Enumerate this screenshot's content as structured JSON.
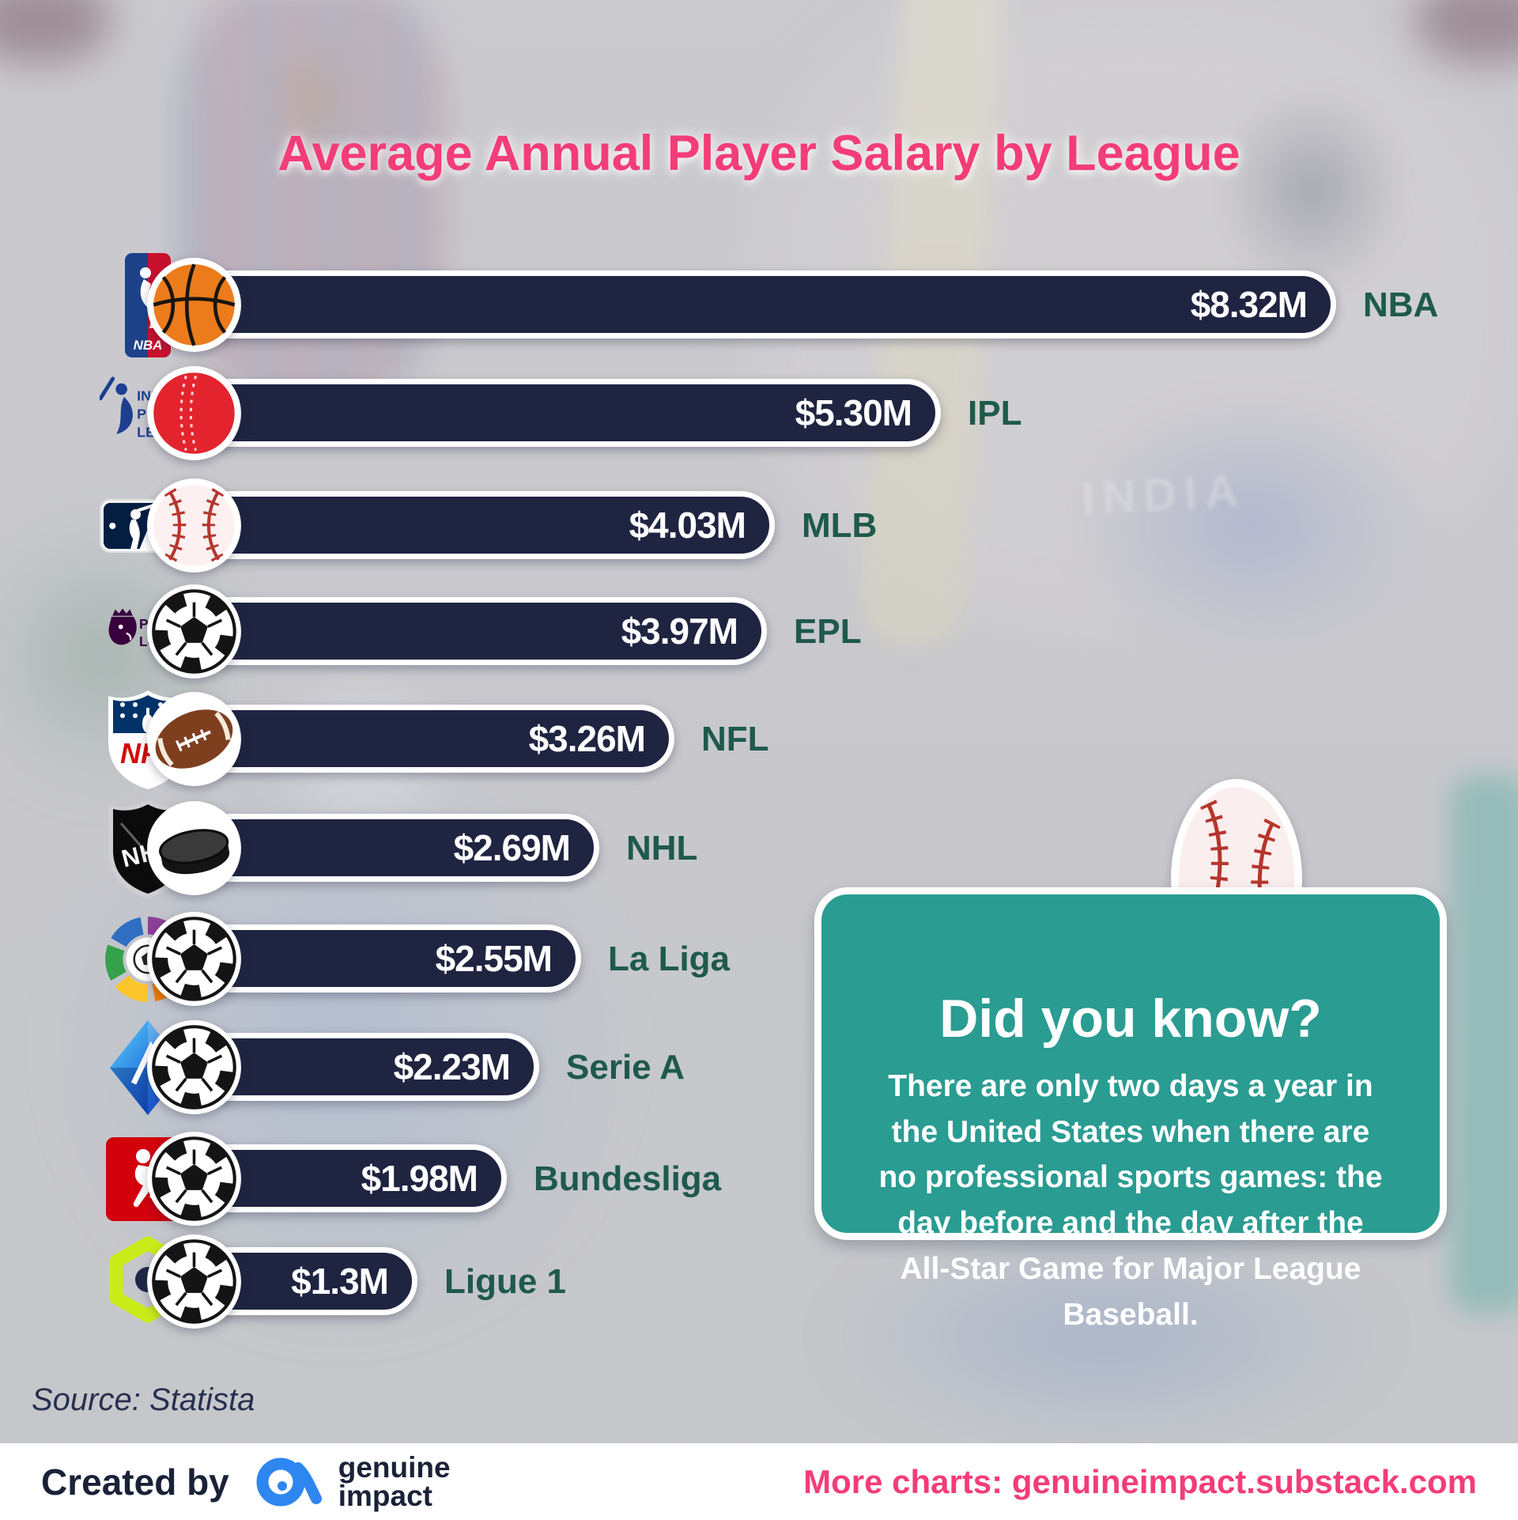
{
  "title": "Average Annual Player Salary by League",
  "chart_data": {
    "type": "bar",
    "orientation": "horizontal",
    "title": "Average Annual Player Salary by League",
    "unit": "USD millions per year",
    "leagues": [
      {
        "league": "NBA",
        "value": 8.32,
        "value_label": "$8.32M",
        "ball": "basketball",
        "logo": "nba"
      },
      {
        "league": "IPL",
        "value": 5.3,
        "value_label": "$5.30M",
        "ball": "cricket",
        "logo": "ipl"
      },
      {
        "league": "MLB",
        "value": 4.03,
        "value_label": "$4.03M",
        "ball": "baseball",
        "logo": "mlb"
      },
      {
        "league": "EPL",
        "value": 3.97,
        "value_label": "$3.97M",
        "ball": "soccer",
        "logo": "epl"
      },
      {
        "league": "NFL",
        "value": 3.26,
        "value_label": "$3.26M",
        "ball": "football",
        "logo": "nfl"
      },
      {
        "league": "NHL",
        "value": 2.69,
        "value_label": "$2.69M",
        "ball": "puck",
        "logo": "nhl"
      },
      {
        "league": "La Liga",
        "value": 2.55,
        "value_label": "$2.55M",
        "ball": "soccer",
        "logo": "laliga"
      },
      {
        "league": "Serie A",
        "value": 2.23,
        "value_label": "$2.23M",
        "ball": "soccer",
        "logo": "seriea"
      },
      {
        "league": "Bundesliga",
        "value": 1.98,
        "value_label": "$1.98M",
        "ball": "soccer",
        "logo": "bund"
      },
      {
        "league": "Ligue 1",
        "value": 1.3,
        "value_label": "$1.3M",
        "ball": "soccer",
        "logo": "ligue1"
      }
    ]
  },
  "did_you_know": {
    "heading": "Did you know?",
    "body": "There are only two days a year in the United States when there are no professional sports games: the day before and the day after the All-Star Game for Major League Baseball."
  },
  "source": {
    "text": "Source: Statista"
  },
  "background": {
    "jersey_text": "INDIA"
  },
  "footer": {
    "created_by": "Created by",
    "brand_line1": "genuine",
    "brand_line2": "impact",
    "more_charts": "More charts: genuineimpact.substack.com"
  },
  "colors": {
    "title_pink": "#f33d78",
    "bar_navy": "#1f2441",
    "league_label_green": "#1e5a4b",
    "didyouknow_teal": "#2a9c92",
    "footer_navy": "#1a2238",
    "brand_blue": "#2e86f0"
  }
}
